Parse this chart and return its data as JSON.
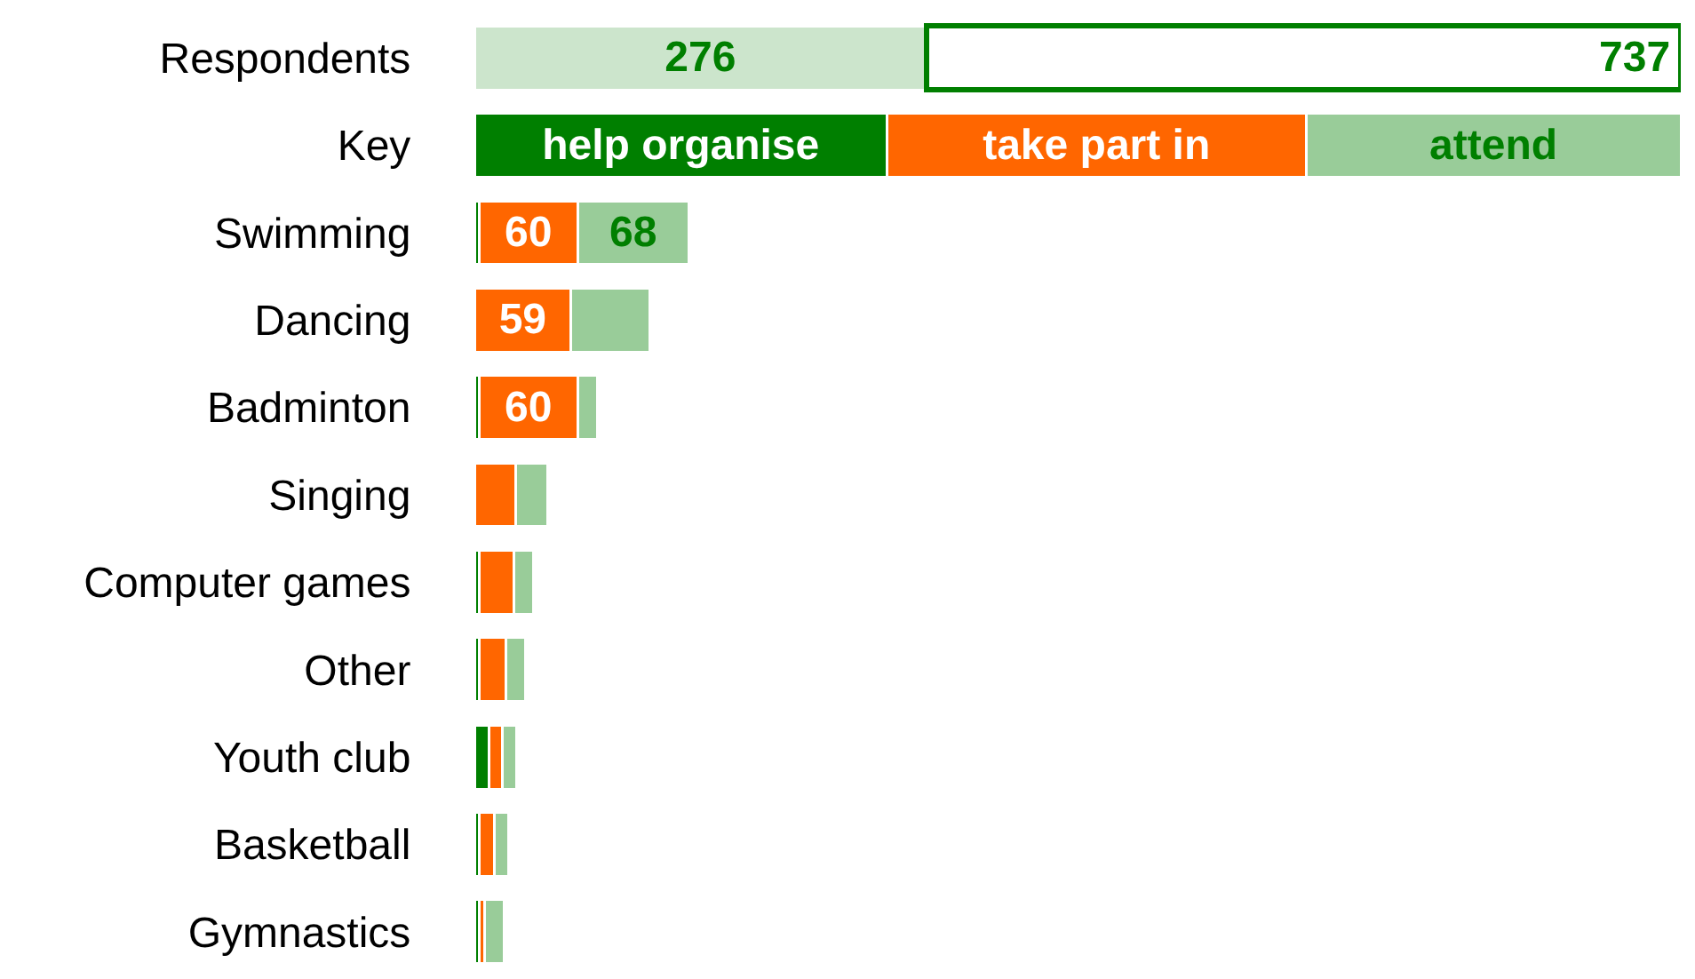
{
  "chart_data": {
    "type": "bar",
    "orientation": "horizontal",
    "stacked": true,
    "totals": [
      "737",
      null,
      null,
      null,
      null,
      null,
      null,
      null,
      null,
      null,
      null
    ],
    "tick_labels": "y",
    "xlim": [
      0,
      737
    ],
    "categories": [
      "Respondents",
      "Key",
      "Swimming",
      "Dancing",
      "Badminton",
      "Singing",
      "Computer games",
      "Other",
      "Youth club",
      "Basketball",
      "Gymnastics"
    ],
    "series": [
      {
        "color": "#007f00",
        "values": [
          null,
          252,
          3,
          null,
          3,
          null,
          3,
          3,
          9,
          3,
          3
        ],
        "value_labels": [
          null,
          "help organise",
          null,
          null,
          null,
          null,
          null,
          null,
          null,
          null,
          null
        ]
      },
      {
        "color": "#ff6600",
        "values": [
          null,
          256,
          60,
          59,
          60,
          25,
          21,
          16,
          8,
          9,
          3
        ],
        "value_labels": [
          null,
          "take part in",
          "60",
          "59",
          "60",
          null,
          null,
          null,
          null,
          null,
          null
        ]
      },
      {
        "color": "#99cc99",
        "colors": [
          "#cce5cc",
          "#99cc99",
          "#99cc99",
          "#99cc99",
          "#99cc99",
          "#99cc99",
          "#99cc99",
          "#99cc99",
          "#99cc99",
          "#99cc99",
          "#99cc99"
        ],
        "values": [
          276,
          229,
          68,
          48,
          12,
          20,
          12,
          12,
          9,
          9,
          12
        ],
        "value_labels": [
          "276",
          "attend",
          "68",
          null,
          null,
          null,
          null,
          null,
          null,
          null,
          null
        ]
      },
      {
        "color": "#ffffff",
        "values": [
          461,
          null,
          null,
          null,
          null,
          null,
          null,
          null,
          null,
          null,
          null
        ],
        "value_labels": [
          null,
          null,
          null,
          null,
          null,
          null,
          null,
          null,
          null,
          null,
          null
        ]
      }
    ]
  }
}
